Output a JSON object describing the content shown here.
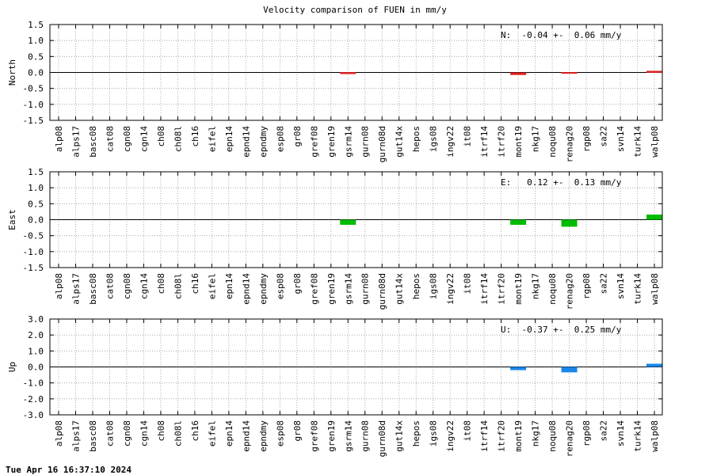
{
  "footer": "Tue Apr 16 16:37:10 2024",
  "chart_data": {
    "type": "bar",
    "title": "Velocity comparison of FUEN in mm/y",
    "categories": [
      "alp08",
      "alps17",
      "basc08",
      "cat08",
      "cgn08",
      "cgn14",
      "ch08",
      "ch08l",
      "ch16",
      "eifel",
      "epn14",
      "epnd14",
      "epndmy",
      "esp08",
      "gr08",
      "gref08",
      "gren19",
      "gsrm14",
      "gurn08",
      "gurn08d",
      "gut14x",
      "hepos",
      "igs08",
      "ingv22",
      "it08",
      "itrf14",
      "itrf20",
      "mont19",
      "nkg17",
      "noqu08",
      "renag20",
      "rgp08",
      "sa22",
      "svn14",
      "turk14",
      "walp08"
    ],
    "grid": true,
    "panels": [
      {
        "ylabel": "North",
        "ylim": [
          -1.5,
          1.5
        ],
        "yticks": [
          -1.5,
          -1.0,
          -0.5,
          0.0,
          0.5,
          1.0,
          1.5
        ],
        "ytick_labels": [
          "-1.5",
          "-1.0",
          "-0.5",
          "0.0",
          "0.5",
          "1.0",
          "1.5"
        ],
        "color": "#e02020",
        "annotation": "N:  -0.04 +-  0.06 mm/y",
        "values": [
          null,
          null,
          null,
          null,
          null,
          null,
          null,
          null,
          null,
          null,
          null,
          null,
          null,
          null,
          null,
          null,
          null,
          -0.02,
          null,
          null,
          null,
          null,
          null,
          null,
          null,
          null,
          null,
          -0.04,
          null,
          null,
          -0.01,
          null,
          null,
          null,
          null,
          0.02
        ],
        "errors": [
          null,
          null,
          null,
          null,
          null,
          null,
          null,
          null,
          null,
          null,
          null,
          null,
          null,
          null,
          null,
          null,
          null,
          0.03,
          null,
          null,
          null,
          null,
          null,
          null,
          null,
          null,
          null,
          0.04,
          null,
          null,
          0.02,
          null,
          null,
          null,
          null,
          0.03
        ]
      },
      {
        "ylabel": "East",
        "ylim": [
          -1.5,
          1.5
        ],
        "yticks": [
          -1.5,
          -1.0,
          -0.5,
          0.0,
          0.5,
          1.0,
          1.5
        ],
        "ytick_labels": [
          "-1.5",
          "-1.0",
          "-0.5",
          "0.0",
          "0.5",
          "1.0",
          "1.5"
        ],
        "color": "#00bb00",
        "annotation": "E:   0.12 +-  0.13 mm/y",
        "values": [
          null,
          null,
          null,
          null,
          null,
          null,
          null,
          null,
          null,
          null,
          null,
          null,
          null,
          null,
          null,
          null,
          null,
          -0.08,
          null,
          null,
          null,
          null,
          null,
          null,
          null,
          null,
          null,
          -0.08,
          null,
          null,
          -0.11,
          null,
          null,
          null,
          null,
          0.08
        ],
        "errors": [
          null,
          null,
          null,
          null,
          null,
          null,
          null,
          null,
          null,
          null,
          null,
          null,
          null,
          null,
          null,
          null,
          null,
          0.08,
          null,
          null,
          null,
          null,
          null,
          null,
          null,
          null,
          null,
          0.08,
          null,
          null,
          0.11,
          null,
          null,
          null,
          null,
          0.08
        ]
      },
      {
        "ylabel": "Up",
        "ylim": [
          -3.0,
          3.0
        ],
        "yticks": [
          -3.0,
          -2.0,
          -1.0,
          0.0,
          1.0,
          2.0,
          3.0
        ],
        "ytick_labels": [
          "-3.0",
          "-2.0",
          "-1.0",
          "0.0",
          "1.0",
          "2.0",
          "3.0"
        ],
        "color": "#1a86e8",
        "annotation": "U:  -0.37 +-  0.25 mm/y",
        "values": [
          null,
          null,
          null,
          null,
          null,
          null,
          null,
          null,
          null,
          null,
          null,
          null,
          null,
          null,
          null,
          null,
          null,
          null,
          null,
          null,
          null,
          null,
          null,
          null,
          null,
          null,
          null,
          -0.1,
          null,
          null,
          -0.17,
          null,
          null,
          null,
          null,
          0.1
        ],
        "errors": [
          null,
          null,
          null,
          null,
          null,
          null,
          null,
          null,
          null,
          null,
          null,
          null,
          null,
          null,
          null,
          null,
          null,
          null,
          null,
          null,
          null,
          null,
          null,
          null,
          null,
          null,
          null,
          0.1,
          null,
          null,
          0.17,
          null,
          null,
          null,
          null,
          0.1
        ]
      }
    ]
  }
}
